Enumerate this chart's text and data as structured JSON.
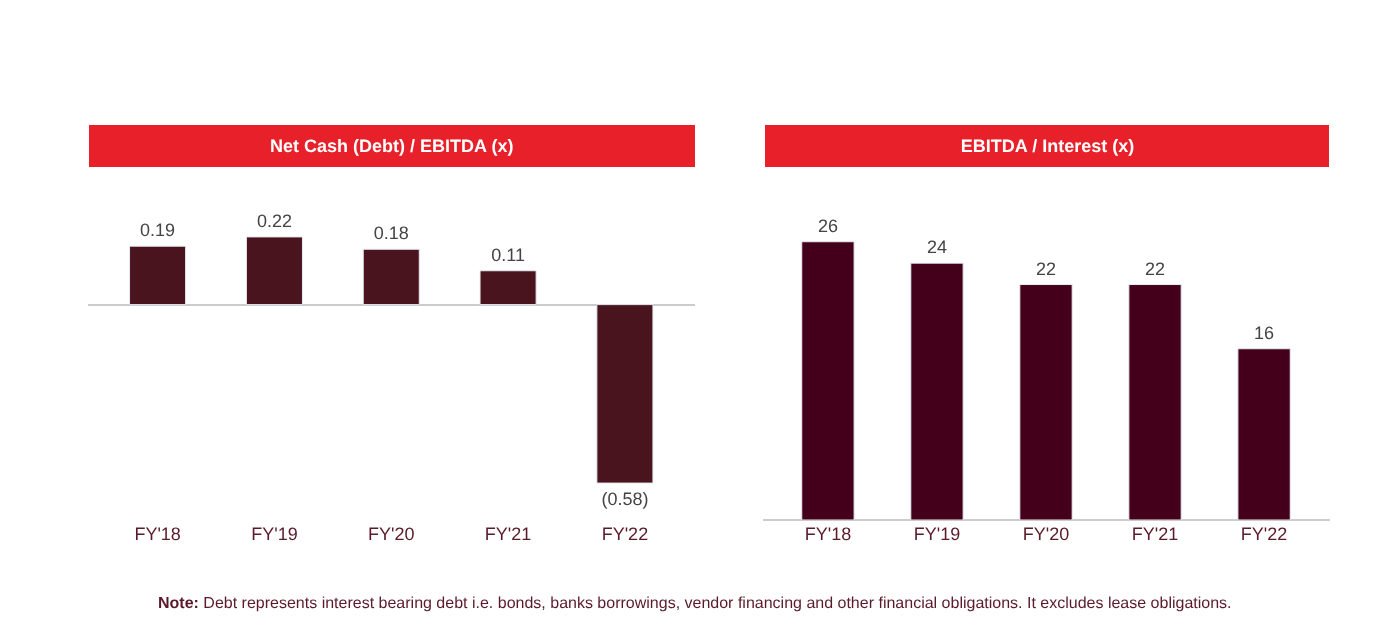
{
  "chart_data": [
    {
      "type": "bar",
      "title": "Net Cash (Debt) / EBITDA (x)",
      "categories": [
        "FY'18",
        "FY'19",
        "FY'20",
        "FY'21",
        "FY'22"
      ],
      "values": [
        0.19,
        0.22,
        0.18,
        0.11,
        -0.58
      ],
      "value_labels": [
        "0.19",
        "0.22",
        "0.18",
        "0.11",
        "(0.58)"
      ],
      "color": "#4a141e",
      "tick_labels": "x"
    },
    {
      "type": "bar",
      "title": "EBITDA / Interest (x)",
      "categories": [
        "FY'18",
        "FY'19",
        "FY'20",
        "FY'21",
        "FY'22"
      ],
      "values": [
        26,
        24,
        22,
        22,
        16
      ],
      "data_labels": true,
      "color": "#44001a",
      "tick_labels": "x",
      "annotations": [
        "Note: Debt represents interest bearing debt i.e. bonds, banks borrowings, vendor financing and other financial obligations. It excludes lease obligations."
      ]
    }
  ]
}
